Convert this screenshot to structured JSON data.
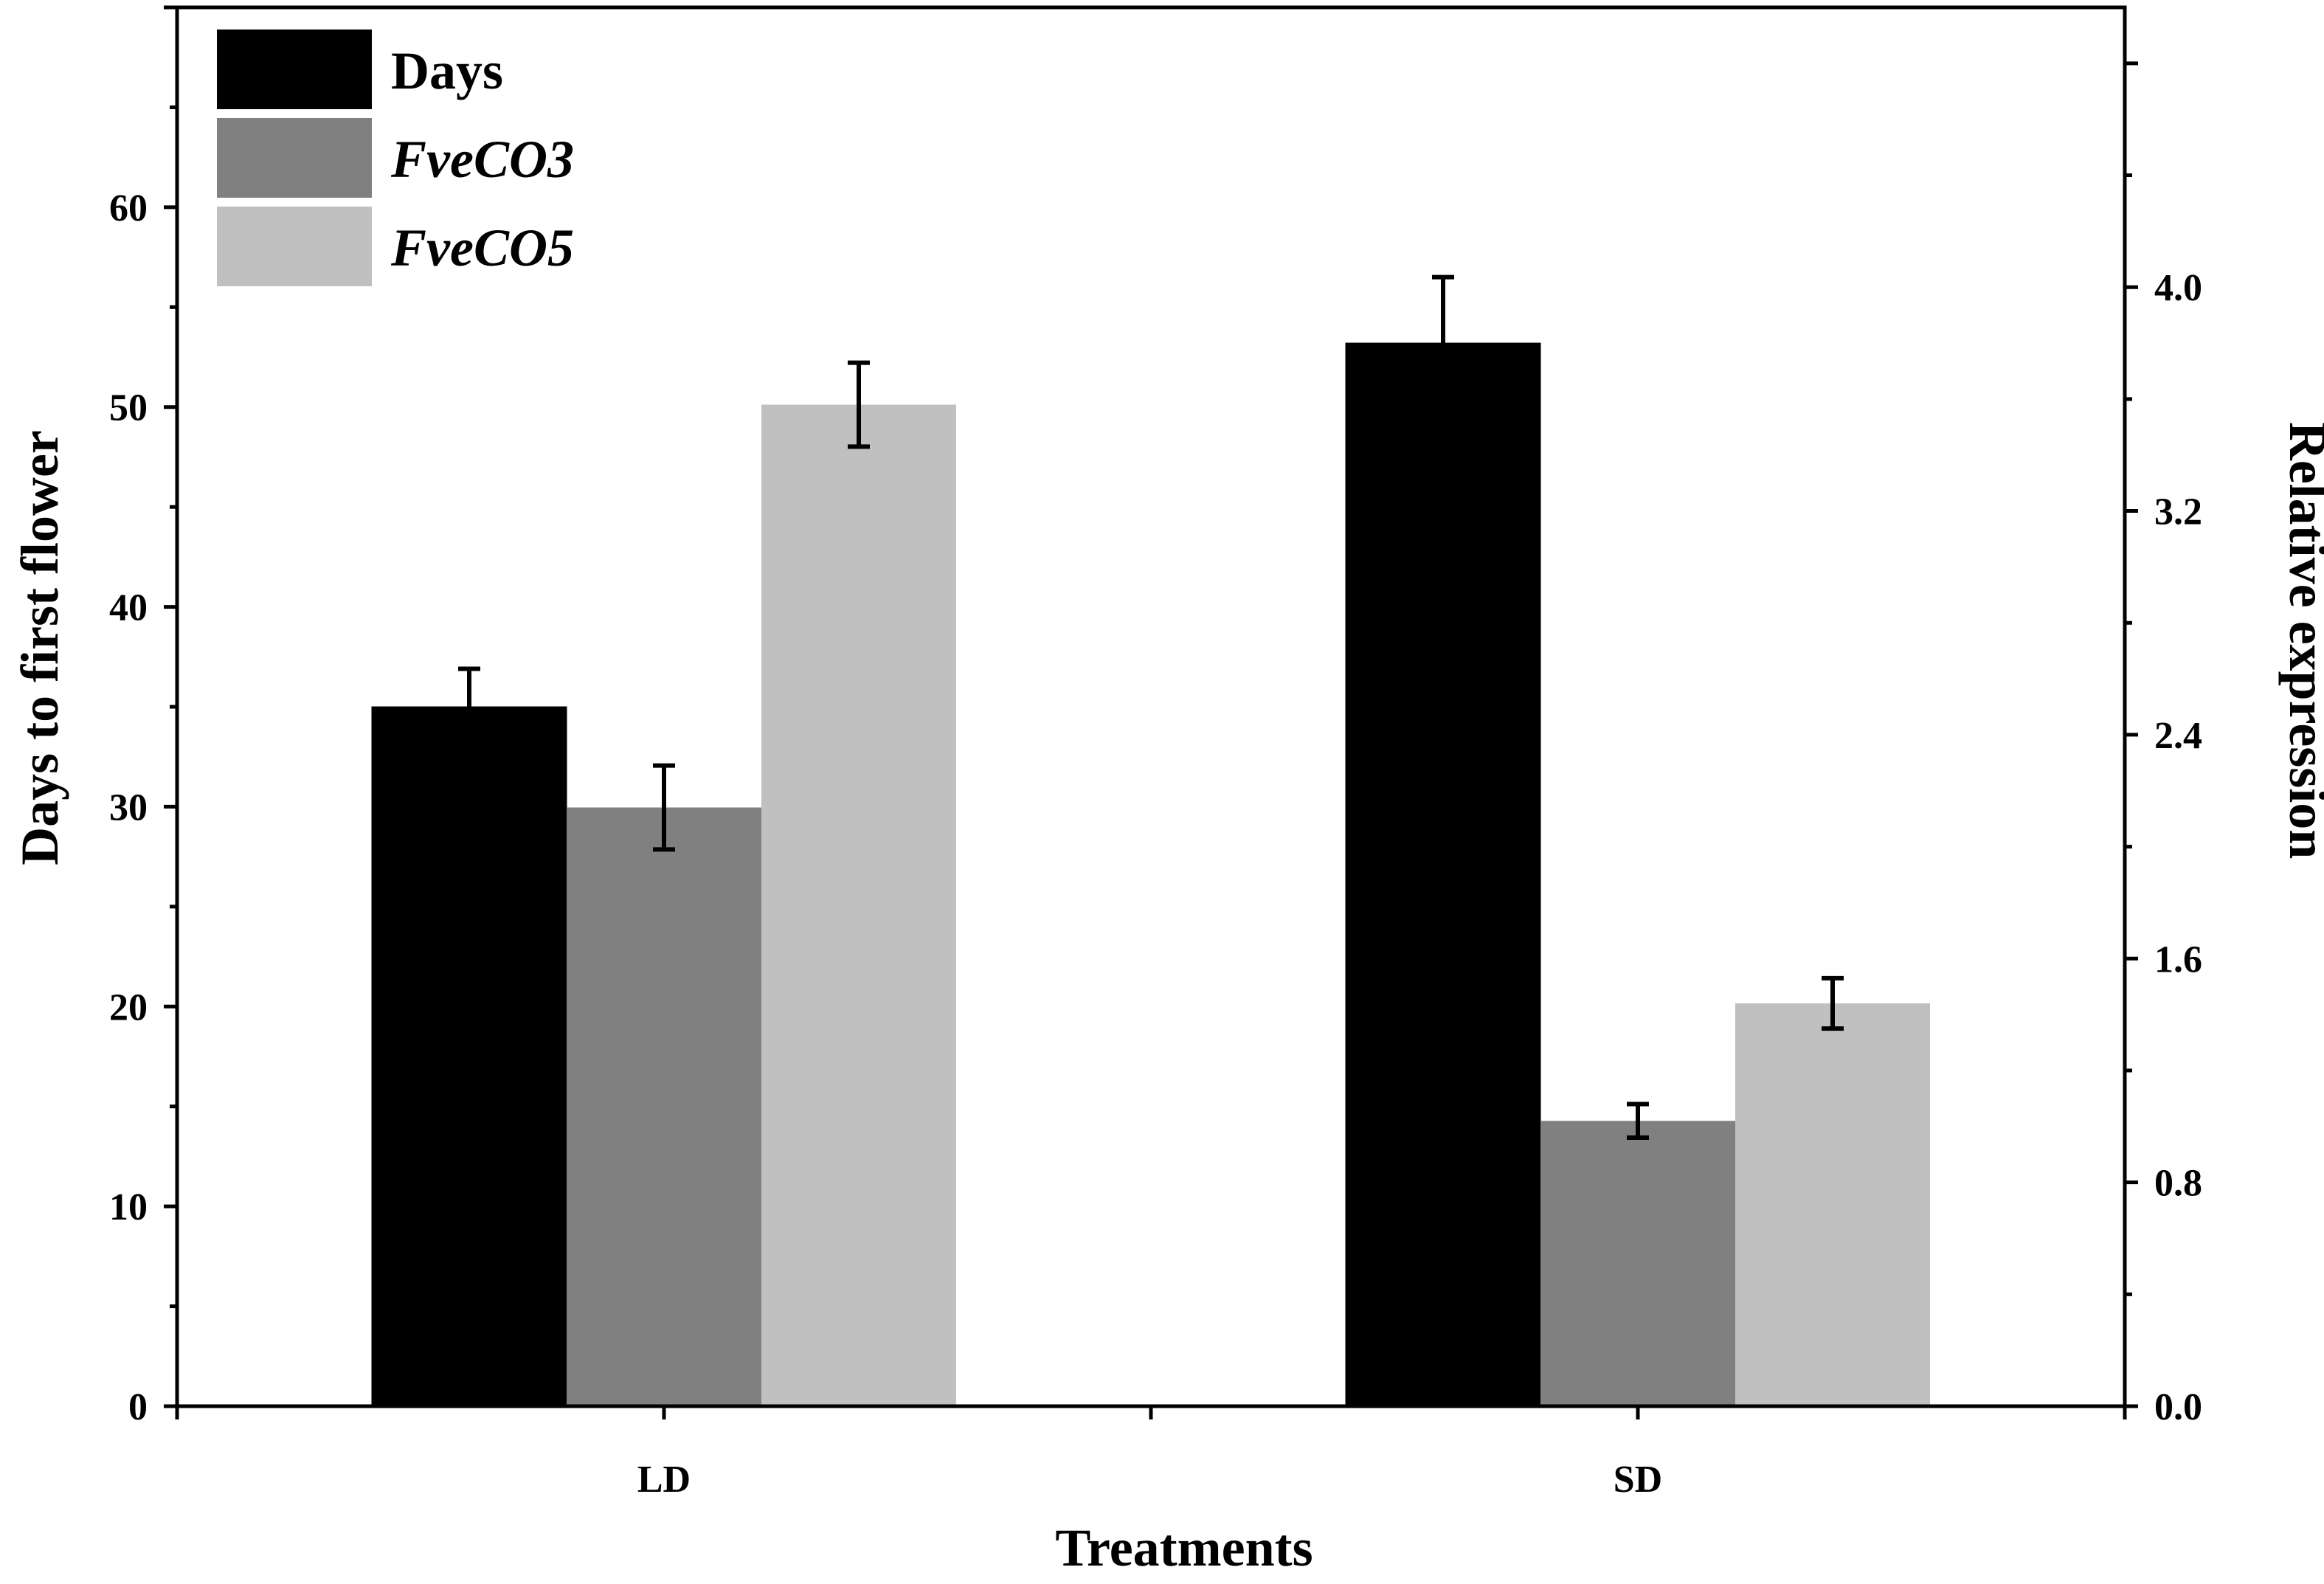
{
  "chart_data": {
    "type": "bar",
    "categories": [
      "LD",
      "SD"
    ],
    "xlabel": "Treatments",
    "ylabel": "Days to first flower",
    "y2label": "Relative expression",
    "ylim": [
      0,
      70
    ],
    "y2lim": [
      0,
      5.0
    ],
    "yticks": [
      "0",
      "10",
      "20",
      "30",
      "40",
      "50",
      "60"
    ],
    "y2ticks": [
      "0.0",
      "0.8",
      "1.6",
      "2.4",
      "3.2",
      "4.0"
    ],
    "series": [
      {
        "name": "Days",
        "axis": "left",
        "color": "#000000",
        "italic": false,
        "values": [
          35.0,
          53.2
        ],
        "errors": [
          1.9,
          3.3
        ]
      },
      {
        "name": "FveCO3",
        "axis": "right",
        "color": "#808080",
        "italic": true,
        "values": [
          2.14,
          1.02
        ],
        "errors": [
          0.15,
          0.06
        ]
      },
      {
        "name": "FveCO5",
        "axis": "right",
        "color": "#c0c0c0",
        "italic": true,
        "values": [
          3.58,
          1.44
        ],
        "errors": [
          0.15,
          0.09
        ]
      }
    ],
    "legend_position": "top-left",
    "grid": false
  }
}
